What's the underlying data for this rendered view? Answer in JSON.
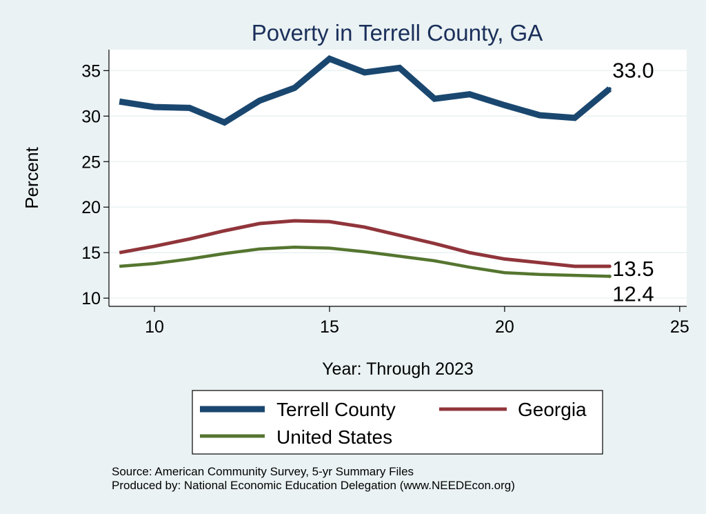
{
  "chart_data": {
    "type": "line",
    "title": "Poverty in Terrell County, GA",
    "xlabel": "Year: Through 2023",
    "ylabel": "Percent",
    "xlim": [
      8.7,
      25.2
    ],
    "ylim": [
      9.1,
      37.3
    ],
    "x_ticks": [
      10,
      15,
      20,
      25
    ],
    "y_ticks": [
      10,
      15,
      20,
      25,
      30,
      35
    ],
    "grid": true,
    "legend_position": "bottom",
    "series": [
      {
        "name": "Terrell County",
        "color": "#1a476f",
        "x": [
          9,
          10,
          11,
          12,
          13,
          14,
          15,
          16,
          17,
          18,
          19,
          20,
          21,
          22,
          23
        ],
        "values": [
          31.6,
          31.0,
          30.9,
          29.3,
          31.7,
          33.1,
          36.3,
          34.8,
          35.3,
          31.9,
          32.4,
          31.2,
          30.1,
          29.8,
          33.0
        ],
        "end_label": "33.0"
      },
      {
        "name": "Georgia",
        "color": "#90353b",
        "x": [
          9,
          10,
          11,
          12,
          13,
          14,
          15,
          16,
          17,
          18,
          19,
          20,
          21,
          22,
          23
        ],
        "values": [
          15.0,
          15.7,
          16.5,
          17.4,
          18.2,
          18.5,
          18.4,
          17.8,
          16.9,
          16.0,
          15.0,
          14.3,
          13.9,
          13.5,
          13.5
        ],
        "end_label": "13.5"
      },
      {
        "name": "United States",
        "color": "#55752f",
        "x": [
          9,
          10,
          11,
          12,
          13,
          14,
          15,
          16,
          17,
          18,
          19,
          20,
          21,
          22,
          23
        ],
        "values": [
          13.5,
          13.8,
          14.3,
          14.9,
          15.4,
          15.6,
          15.5,
          15.1,
          14.6,
          14.1,
          13.4,
          12.8,
          12.6,
          12.5,
          12.4
        ],
        "end_label": "12.4"
      }
    ],
    "source_note": "Source: American Community Survey, 5-yr Summary Files",
    "producer_note": "Produced by: National Economic Education Delegation (www.NEEDEcon.org)"
  }
}
